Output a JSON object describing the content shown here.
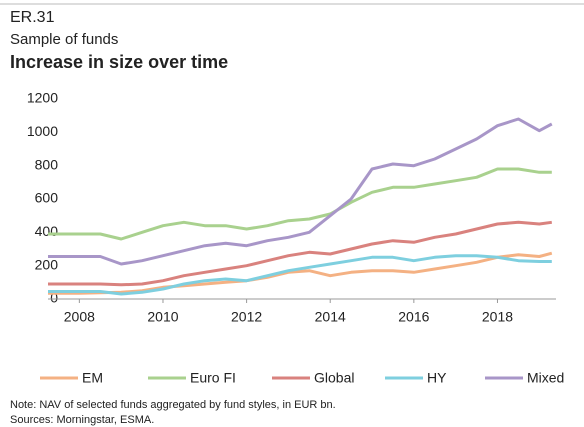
{
  "chart_data": {
    "type": "line",
    "code": "ER.31",
    "subtitle": "Sample of funds",
    "title": "Increase in size over time",
    "x": [
      2007.25,
      2008,
      2008.5,
      2009,
      2009.5,
      2010,
      2010.5,
      2011,
      2011.5,
      2012,
      2012.5,
      2013,
      2013.5,
      2014,
      2014.5,
      2015,
      2015.5,
      2016,
      2016.5,
      2017,
      2017.5,
      2018,
      2018.5,
      2019,
      2019.3
    ],
    "series": [
      {
        "name": "EM",
        "color": "#f4b183",
        "values": [
          35,
          35,
          38,
          40,
          50,
          70,
          80,
          90,
          100,
          110,
          130,
          160,
          170,
          140,
          160,
          170,
          170,
          160,
          180,
          200,
          220,
          250,
          265,
          255,
          275
        ]
      },
      {
        "name": "Euro FI",
        "color": "#a9d18e",
        "values": [
          390,
          390,
          390,
          360,
          400,
          440,
          460,
          440,
          440,
          420,
          440,
          470,
          480,
          510,
          580,
          640,
          670,
          670,
          690,
          710,
          730,
          780,
          780,
          760,
          760
        ]
      },
      {
        "name": "Global",
        "color": "#d9827e",
        "values": [
          90,
          90,
          90,
          85,
          90,
          110,
          140,
          160,
          180,
          200,
          230,
          260,
          280,
          270,
          300,
          330,
          350,
          340,
          370,
          390,
          420,
          450,
          460,
          450,
          460
        ]
      },
      {
        "name": "HY",
        "color": "#7ecfdf",
        "values": [
          45,
          45,
          45,
          30,
          40,
          60,
          90,
          110,
          120,
          110,
          140,
          170,
          190,
          210,
          230,
          250,
          250,
          230,
          250,
          260,
          260,
          250,
          230,
          225,
          225
        ]
      },
      {
        "name": "Mixed",
        "color": "#a896c8",
        "values": [
          255,
          255,
          255,
          210,
          230,
          260,
          290,
          320,
          335,
          320,
          350,
          370,
          400,
          500,
          600,
          780,
          810,
          800,
          840,
          900,
          960,
          1040,
          1080,
          1010,
          1050
        ]
      }
    ],
    "xlim": [
      2007.25,
      2019.4
    ],
    "xticks": [
      2008,
      2010,
      2012,
      2014,
      2016,
      2018
    ],
    "ylim": [
      0,
      1200
    ],
    "yticks": [
      0,
      200,
      400,
      600,
      800,
      1000,
      1200
    ],
    "grid": false,
    "note": "Note: NAV of selected funds aggregated  by fund styles, in EUR bn.",
    "source": "Sources: Morningstar, ESMA."
  }
}
